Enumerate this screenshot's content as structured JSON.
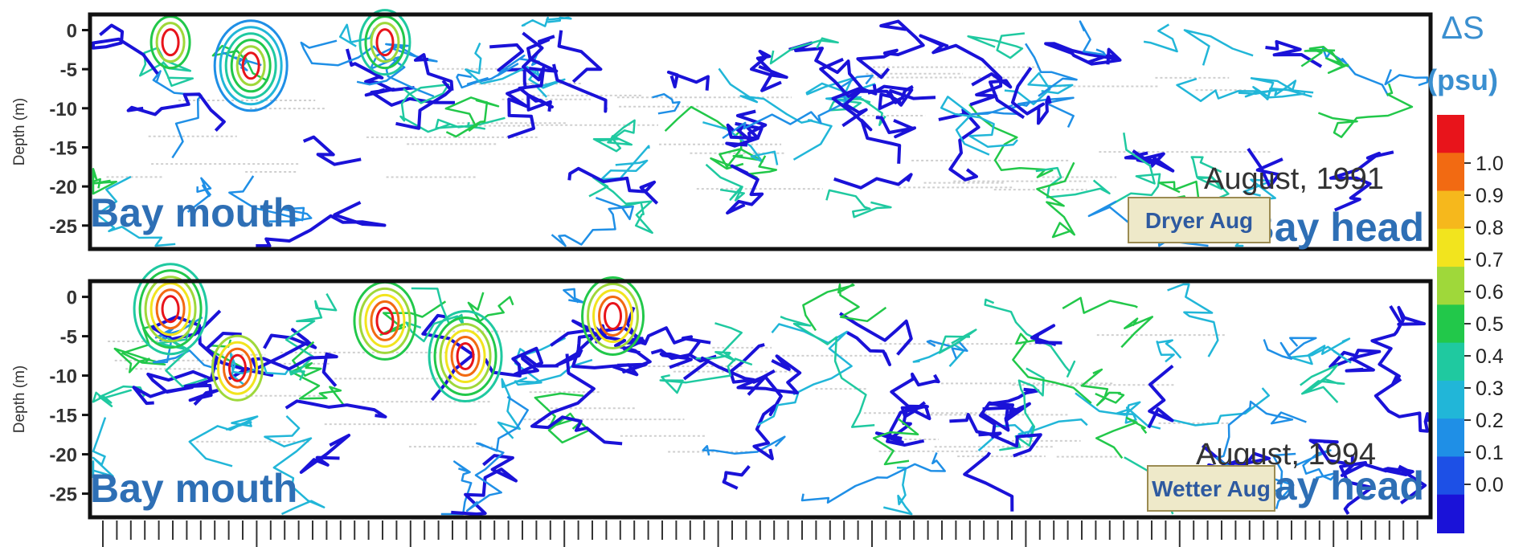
{
  "colorbar": {
    "title": "ΔS",
    "unit": "(psu)",
    "ticks": [
      "1.0",
      "0.9",
      "0.8",
      "0.7",
      "0.6",
      "0.5",
      "0.4",
      "0.3",
      "0.2",
      "0.1",
      "0.0"
    ],
    "colors": [
      "#e8141b",
      "#f26a12",
      "#f6b81c",
      "#f2e41e",
      "#9fd83a",
      "#22c84a",
      "#1fc9a0",
      "#21b6d8",
      "#1f8fe6",
      "#1d50e6",
      "#1a12d8"
    ]
  },
  "chart_data": [
    {
      "type": "heatmap",
      "title": "August, 1991",
      "ylabel": "Depth (m)",
      "yticks": [
        "0",
        "-5",
        "-10",
        "-15",
        "-20",
        "-25"
      ],
      "ylim": [
        -28,
        2
      ],
      "left_label": "Bay mouth",
      "right_label": "Bay head",
      "annotation": "Dryer Aug",
      "value_range": [
        0.0,
        1.0
      ],
      "colors": [
        "#1a12d8",
        "#1f8fe6",
        "#21b6d8",
        "#1fc9a0",
        "#22c84a",
        "#9fd83a",
        "#e8141b"
      ],
      "seed": 1991,
      "hotspots": [
        [
          0.06,
          0.05,
          3
        ],
        [
          0.12,
          0.15,
          6
        ],
        [
          0.22,
          0.05,
          4
        ]
      ]
    },
    {
      "type": "heatmap",
      "title": "August, 1994",
      "ylabel": "Depth (m)",
      "yticks": [
        "0",
        "-5",
        "-10",
        "-15",
        "-20",
        "-25"
      ],
      "ylim": [
        -28,
        2
      ],
      "left_label": "Bay mouth",
      "right_label": "Bay head",
      "annotation": "Wetter Aug",
      "value_range": [
        0.0,
        1.0
      ],
      "colors": [
        "#1a12d8",
        "#1f8fe6",
        "#21b6d8",
        "#1fc9a0",
        "#22c84a",
        "#9fd83a",
        "#f2e41e",
        "#f26a12",
        "#e8141b"
      ],
      "seed": 1994,
      "hotspots": [
        [
          0.06,
          0.05,
          6
        ],
        [
          0.11,
          0.3,
          4
        ],
        [
          0.22,
          0.1,
          5
        ],
        [
          0.28,
          0.25,
          6
        ],
        [
          0.39,
          0.08,
          5
        ]
      ]
    }
  ]
}
